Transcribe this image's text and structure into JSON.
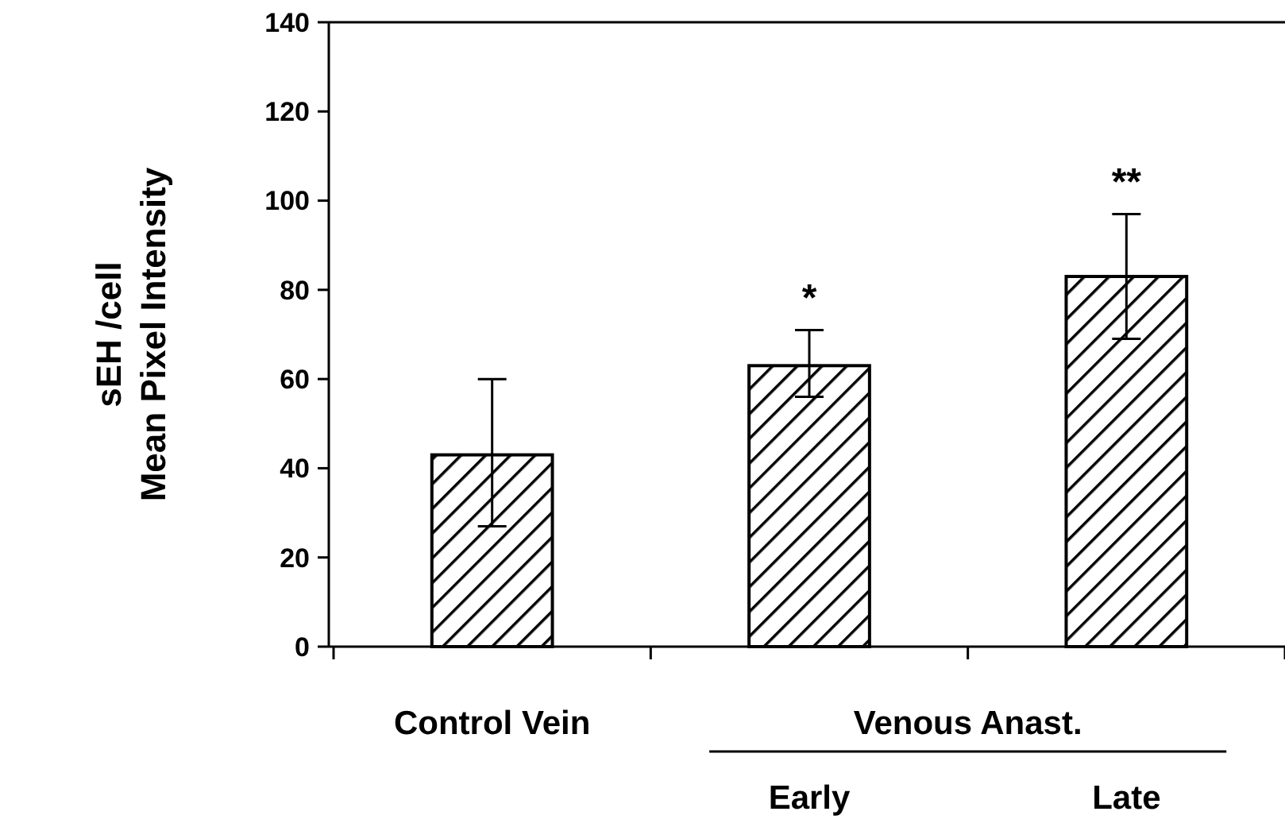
{
  "chart_data": {
    "type": "bar",
    "ylabel": "sEH /cell\nMean Pixel Intensity",
    "categories": [
      "Control Vein",
      "Early",
      "Late"
    ],
    "values": [
      43,
      63,
      83
    ],
    "errors": [
      [
        27,
        60
      ],
      [
        56,
        71
      ],
      [
        69,
        97
      ]
    ],
    "color": "#000000",
    "ylim": [
      0,
      140
    ],
    "yticks": [
      0,
      20,
      40,
      60,
      80,
      100,
      120,
      140
    ],
    "annotations": [
      {
        "text": "*",
        "x": "Early",
        "y": 71
      },
      {
        "text": "**",
        "x": "Late",
        "y": 97
      },
      "Venous Anast."
    ],
    "grid": false
  }
}
